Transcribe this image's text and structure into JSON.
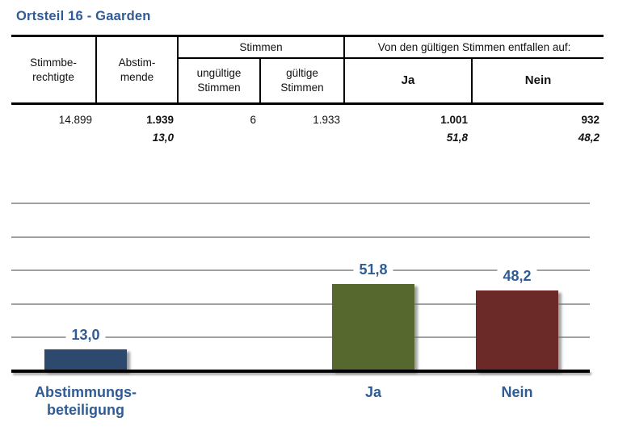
{
  "page": {
    "title": "Ortsteil 16 - Gaarden"
  },
  "colors": {
    "accent_blue": "#2F5C94",
    "table_border": "#000000",
    "gridline": "#A0A0A0",
    "baseline": "#000000"
  },
  "table": {
    "header": {
      "stimmberechtigte": "Stimmbe-\nrechtigte",
      "abstimmende": "Abstim-\nmende",
      "stimmen_group": "Stimmen",
      "ungueltige_stimmen": "ungültige\nStimmen",
      "gueltige_stimmen": "gültige\nStimmen",
      "entfallen_group": "Von den gültigen Stimmen entfallen auf:",
      "ja": "Ja",
      "nein": "Nein"
    },
    "row": {
      "stimmberechtigte": "14.899",
      "abstimmende": "1.939",
      "abstimmende_pct": "13,0",
      "ungueltige_stimmen": "6",
      "gueltige_stimmen": "1.933",
      "ja": "1.001",
      "ja_pct": "51,8",
      "nein": "932",
      "nein_pct": "48,2"
    }
  },
  "chart_data": {
    "type": "bar",
    "title": "",
    "xlabel": "",
    "ylabel": "",
    "categories": [
      "Abstimmungs-\nbeteiligung",
      "Ja",
      "Nein"
    ],
    "values": [
      13.0,
      51.8,
      48.2
    ],
    "value_labels": [
      "13,0",
      "51,8",
      "48,2"
    ],
    "bar_names": [
      "abstimmungsbeteiligung",
      "ja",
      "nein"
    ],
    "bar_colors": [
      "#2D4A6E",
      "#56682D",
      "#6B2A28"
    ],
    "ylim": [
      0,
      100
    ],
    "gridline_values": [
      20,
      40,
      60,
      80,
      100
    ],
    "grid": true,
    "legend": "none"
  }
}
